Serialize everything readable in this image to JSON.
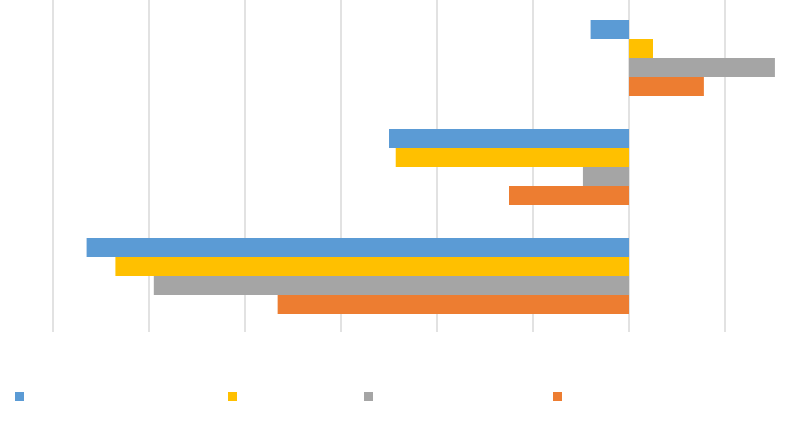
{
  "chart_data": {
    "type": "bar",
    "orientation": "horizontal",
    "title": "",
    "xlabel": "",
    "ylabel": "",
    "xlim": [
      -6,
      1.6
    ],
    "x_gridlines": [
      -6,
      -5,
      -4,
      -3,
      -2,
      -1,
      0,
      1
    ],
    "grid": true,
    "legend_position": "bottom",
    "categories": [
      "",
      "",
      ""
    ],
    "series": [
      {
        "values": [
          -0.4,
          -2.5,
          -5.65
        ],
        "color": "#5b9bd5"
      },
      {
        "values": [
          0.25,
          -2.43,
          -5.35
        ],
        "color": "#ffc000"
      },
      {
        "values": [
          1.52,
          -0.48,
          -4.95
        ],
        "color": "#a5a5a5"
      },
      {
        "values": [
          0.78,
          -1.25,
          -3.66
        ],
        "color": "#ed7d31"
      }
    ]
  }
}
